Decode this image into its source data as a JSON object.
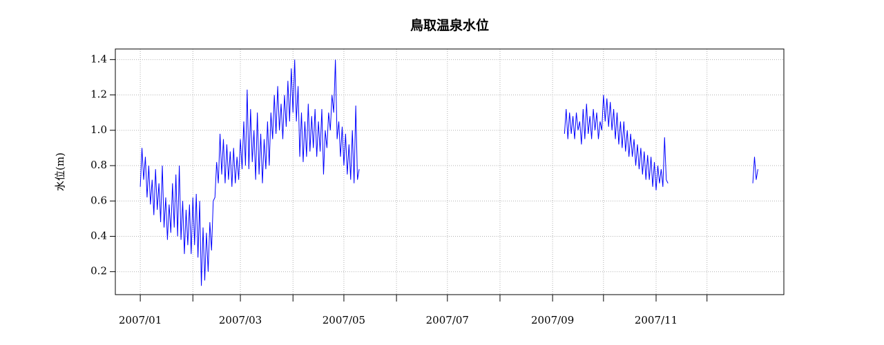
{
  "chart_data": {
    "type": "line",
    "title": "鳥取温泉水位",
    "y_label": "水位(m)",
    "color": "#0000ff",
    "grid": true,
    "xlim": [
      -14.7,
      379.3
    ],
    "ylim": [
      0.07,
      1.46
    ],
    "xticks": [
      {
        "value": 0,
        "label": "2007/01"
      },
      {
        "value": 31,
        "label": null
      },
      {
        "value": 59,
        "label": "2007/03"
      },
      {
        "value": 90,
        "label": null
      },
      {
        "value": 120,
        "label": "2007/05"
      },
      {
        "value": 151,
        "label": null
      },
      {
        "value": 181,
        "label": "2007/07"
      },
      {
        "value": 212,
        "label": null
      },
      {
        "value": 243,
        "label": "2007/09"
      },
      {
        "value": 273,
        "label": null
      },
      {
        "value": 304,
        "label": "2007/11"
      },
      {
        "value": 334,
        "label": null
      }
    ],
    "yticks": [
      0.2,
      0.4,
      0.6,
      0.8,
      {
        "value": 1,
        "label": "1.0"
      },
      1.2,
      1.4
    ],
    "x": [
      0,
      1,
      2,
      3,
      4,
      5,
      6,
      7,
      8,
      9,
      10,
      11,
      12,
      13,
      14,
      15,
      16,
      17,
      18,
      19,
      20,
      21,
      22,
      23,
      24,
      25,
      26,
      27,
      28,
      29,
      30,
      31,
      32,
      33,
      34,
      35,
      36,
      37,
      38,
      39,
      40,
      41,
      42,
      43,
      44,
      45,
      46,
      47,
      48,
      49,
      50,
      51,
      52,
      53,
      54,
      55,
      56,
      57,
      58,
      59,
      60,
      61,
      62,
      63,
      64,
      65,
      66,
      67,
      68,
      69,
      70,
      71,
      72,
      73,
      74,
      75,
      76,
      77,
      78,
      79,
      80,
      81,
      82,
      83,
      84,
      85,
      86,
      87,
      88,
      89,
      90,
      91,
      92,
      93,
      94,
      95,
      96,
      97,
      98,
      99,
      100,
      101,
      102,
      103,
      104,
      105,
      106,
      107,
      108,
      109,
      110,
      111,
      112,
      113,
      114,
      115,
      116,
      117,
      118,
      119,
      120,
      121,
      122,
      123,
      124,
      125,
      126,
      127,
      128,
      129,
      190,
      250,
      251,
      252,
      253,
      254,
      255,
      256,
      257,
      258,
      259,
      260,
      261,
      262,
      263,
      264,
      265,
      266,
      267,
      268,
      269,
      270,
      271,
      272,
      273,
      274,
      275,
      276,
      277,
      278,
      279,
      280,
      281,
      282,
      283,
      284,
      285,
      286,
      287,
      288,
      289,
      290,
      291,
      292,
      293,
      294,
      295,
      296,
      297,
      298,
      299,
      300,
      301,
      302,
      303,
      304,
      305,
      306,
      307,
      308,
      309,
      310,
      311,
      337,
      361,
      362,
      363,
      364
    ],
    "values": [
      0.68,
      0.9,
      0.72,
      0.85,
      0.62,
      0.8,
      0.58,
      0.72,
      0.52,
      0.78,
      0.55,
      0.7,
      0.48,
      0.8,
      0.45,
      0.62,
      0.38,
      0.58,
      0.42,
      0.7,
      0.45,
      0.75,
      0.4,
      0.8,
      0.38,
      0.6,
      0.3,
      0.55,
      0.35,
      0.58,
      0.3,
      0.62,
      0.35,
      0.64,
      0.28,
      0.6,
      0.12,
      0.45,
      0.15,
      0.42,
      0.2,
      0.48,
      0.32,
      0.6,
      0.62,
      0.82,
      0.7,
      0.98,
      0.75,
      0.95,
      0.7,
      0.92,
      0.72,
      0.88,
      0.68,
      0.9,
      0.7,
      0.85,
      0.72,
      0.95,
      0.78,
      1.05,
      0.8,
      1.23,
      0.78,
      1.12,
      0.82,
      1.0,
      0.72,
      1.1,
      0.75,
      0.98,
      0.7,
      0.95,
      0.78,
      1.05,
      0.8,
      1.1,
      0.95,
      1.2,
      0.98,
      1.25,
      1.0,
      1.15,
      0.95,
      1.2,
      1.02,
      1.28,
      1.05,
      1.35,
      1.1,
      1.4,
      1.05,
      1.25,
      0.85,
      1.1,
      0.82,
      1.05,
      0.85,
      1.15,
      0.88,
      1.08,
      0.9,
      1.12,
      0.85,
      1.05,
      0.88,
      1.12,
      0.75,
      1.0,
      0.9,
      1.1,
      1.0,
      1.2,
      1.1,
      1.4,
      0.95,
      1.05,
      0.85,
      1.02,
      0.8,
      0.98,
      0.75,
      0.92,
      0.72,
      1.0,
      0.7,
      1.14,
      0.72,
      0.78,
      null,
      0.98,
      1.12,
      0.95,
      1.1,
      0.98,
      1.08,
      0.95,
      1.1,
      1.0,
      1.05,
      0.92,
      1.12,
      0.95,
      1.15,
      0.98,
      1.08,
      0.95,
      1.12,
      1.0,
      1.1,
      0.95,
      1.05,
      1.0,
      1.2,
      1.05,
      1.18,
      1.02,
      1.16,
      1.0,
      1.12,
      0.95,
      1.1,
      0.92,
      1.05,
      0.9,
      1.05,
      0.88,
      1.0,
      0.85,
      0.98,
      0.85,
      0.95,
      0.8,
      0.92,
      0.78,
      0.9,
      0.75,
      0.88,
      0.72,
      0.86,
      0.72,
      0.85,
      0.68,
      0.82,
      0.66,
      0.8,
      0.7,
      0.78,
      0.68,
      0.96,
      0.72,
      0.7,
      null,
      0.7,
      0.85,
      0.72,
      0.78
    ]
  }
}
